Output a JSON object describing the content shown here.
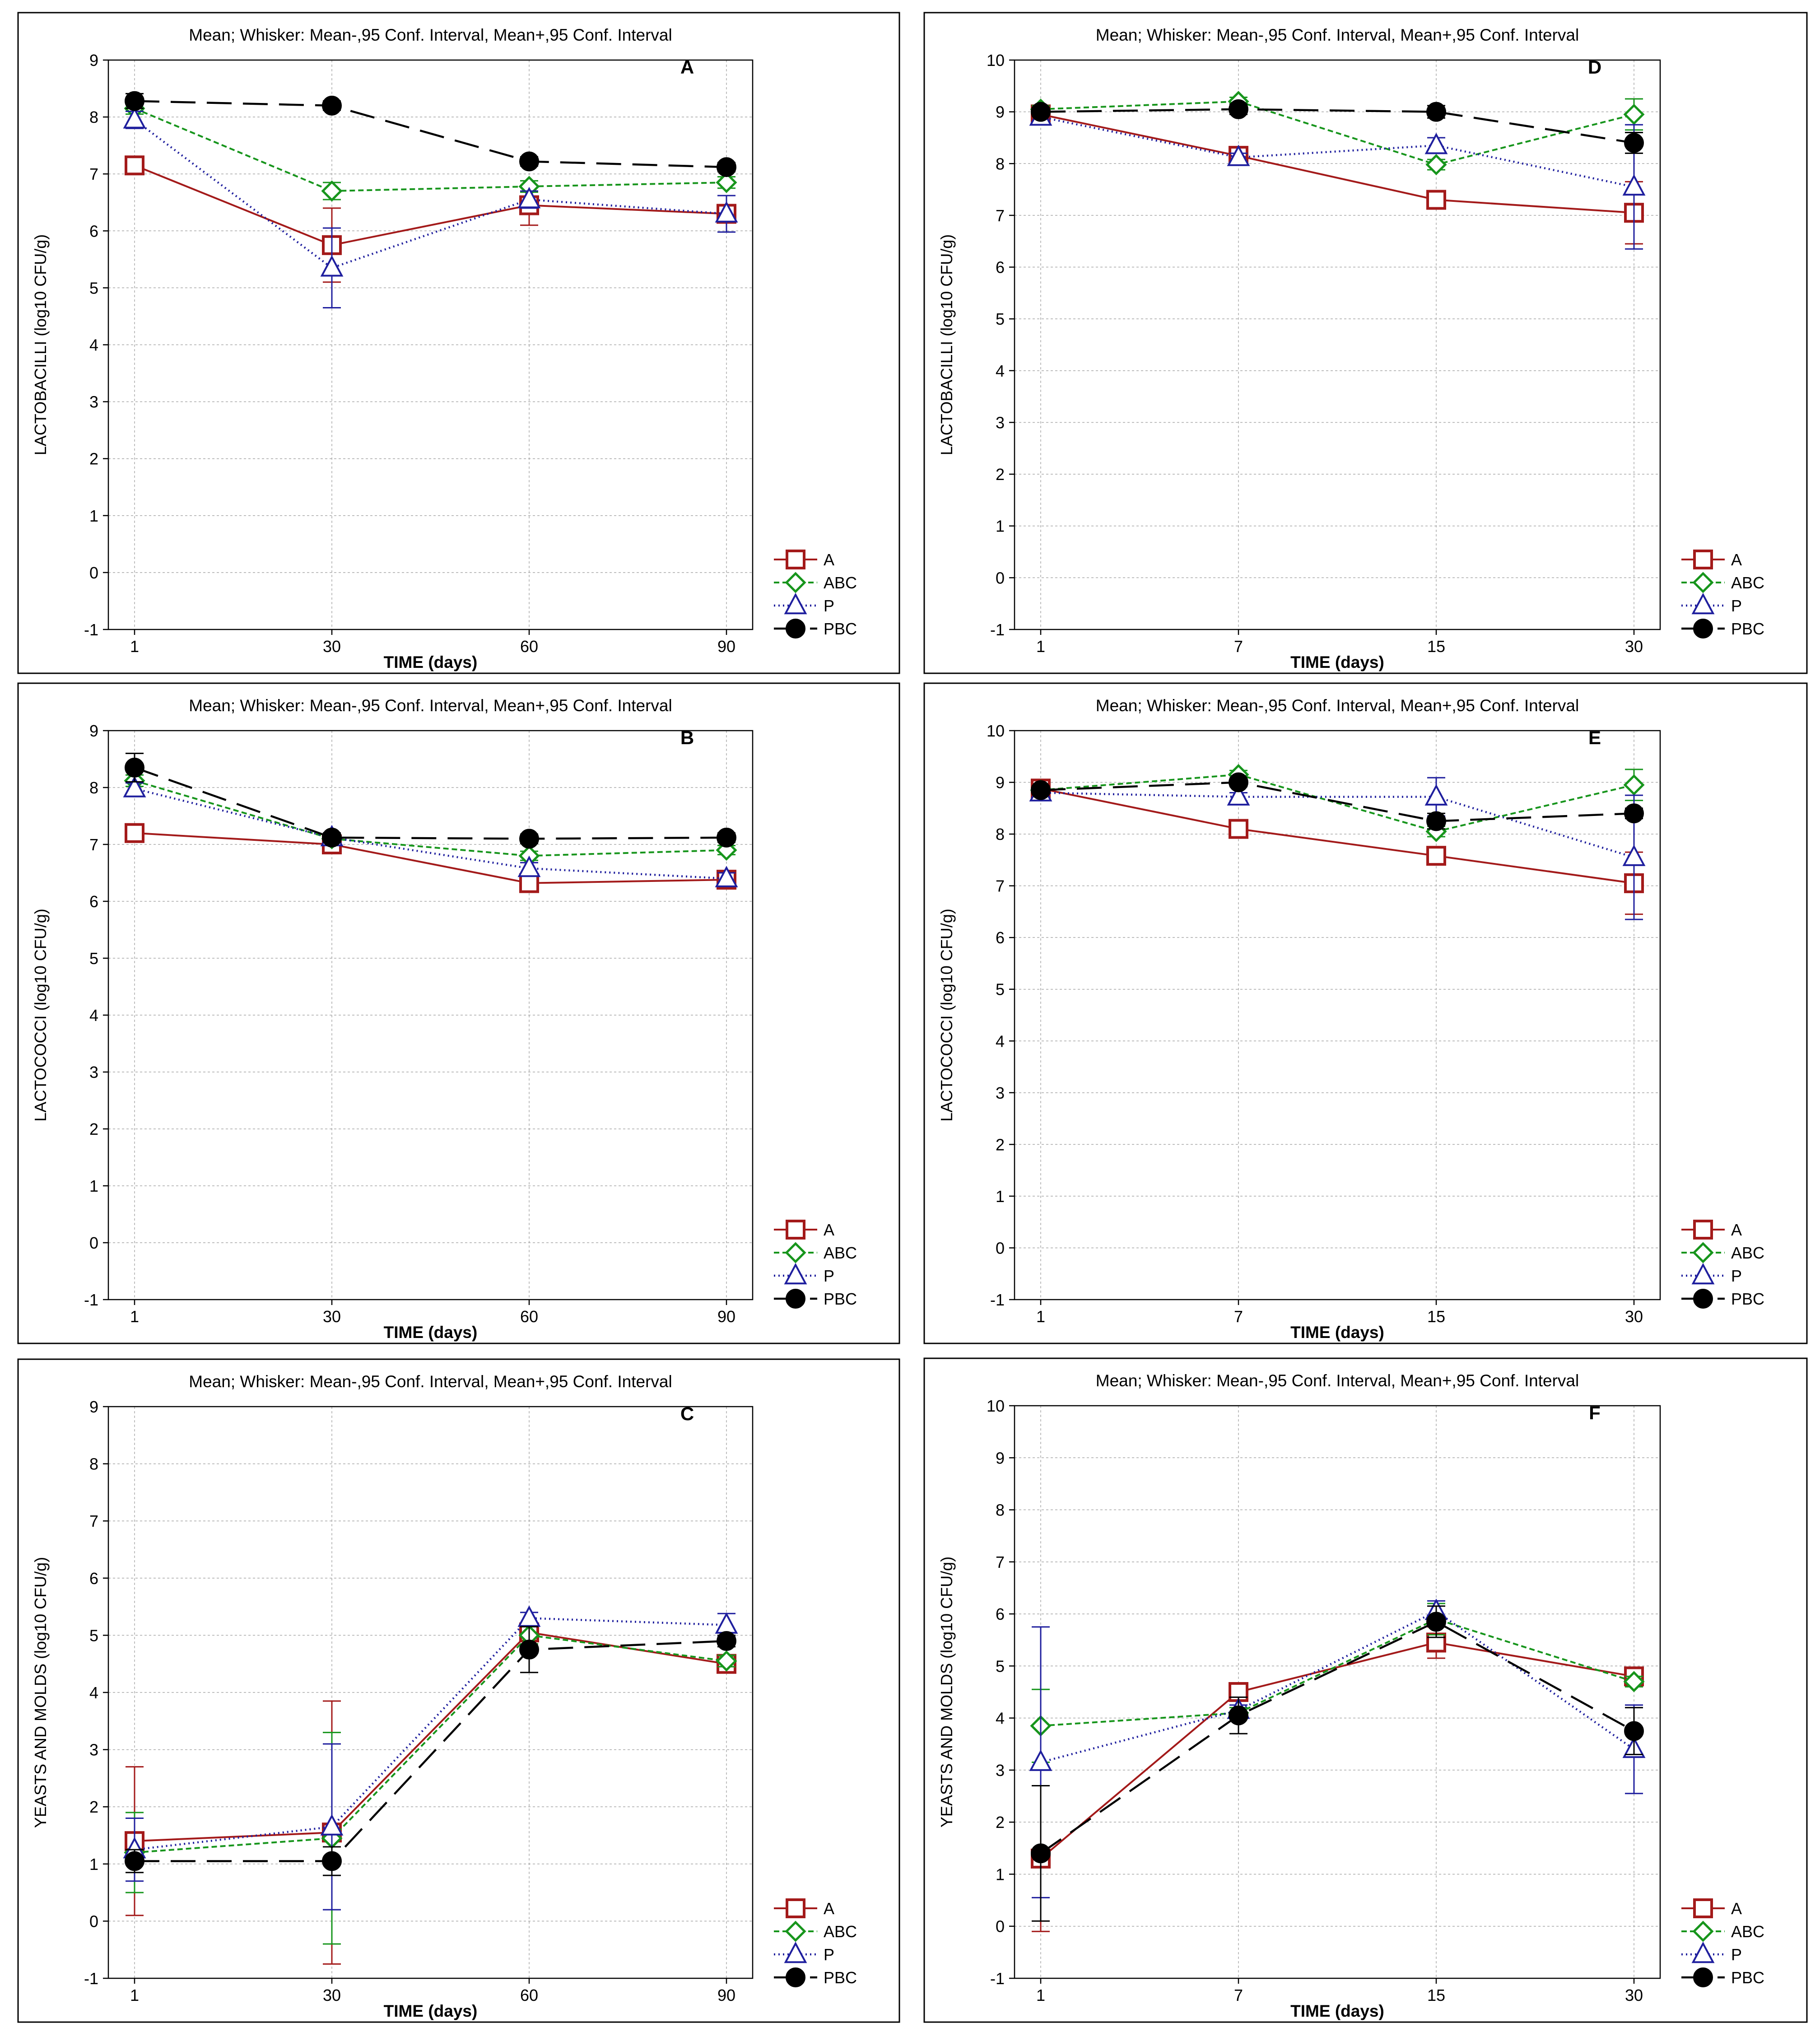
{
  "header_text": "Mean;  Whisker: Mean-,95 Conf. Interval, Mean+,95 Conf. Interval",
  "xlabel": "TIME (days)",
  "legend": [
    "A",
    "ABC",
    "P",
    "PBC"
  ],
  "series_colors": {
    "A": "#a31a1a",
    "ABC": "#17951c",
    "P": "#1f1f9e",
    "PBC": "#000000"
  },
  "chart_data": [
    {
      "type": "line",
      "panel": "A",
      "title": "Mean;  Whisker: Mean-,95 Conf. Interval, Mean+,95 Conf. Interval",
      "xlabel": "TIME (days)",
      "ylabel": "LACTOBACILLI  (log10 CFU/g)",
      "categories": [
        "1",
        "30",
        "60",
        "90"
      ],
      "ylim": [
        -1,
        9
      ],
      "yticks": [
        -1,
        0,
        1,
        2,
        3,
        4,
        5,
        6,
        7,
        8,
        9
      ],
      "series": [
        {
          "name": "A",
          "values": [
            7.15,
            5.75,
            6.45,
            6.3
          ],
          "ci_low": [
            7.0,
            5.1,
            6.1,
            6.15
          ],
          "ci_high": [
            7.3,
            6.4,
            6.8,
            6.45
          ]
        },
        {
          "name": "ABC",
          "values": [
            8.15,
            6.7,
            6.78,
            6.85
          ],
          "ci_low": [
            8.05,
            6.55,
            6.68,
            6.75
          ],
          "ci_high": [
            8.25,
            6.85,
            6.88,
            6.95
          ]
        },
        {
          "name": "P",
          "values": [
            7.95,
            5.35,
            6.55,
            6.3
          ],
          "ci_low": [
            7.8,
            4.65,
            6.4,
            5.98
          ],
          "ci_high": [
            8.1,
            6.05,
            6.7,
            6.62
          ]
        },
        {
          "name": "PBC",
          "values": [
            8.28,
            8.2,
            7.22,
            7.12
          ],
          "ci_low": [
            8.15,
            8.12,
            7.14,
            7.04
          ],
          "ci_high": [
            8.41,
            8.28,
            7.3,
            7.2
          ]
        }
      ]
    },
    {
      "type": "line",
      "panel": "B",
      "title": "Mean;  Whisker: Mean-,95 Conf. Interval, Mean+,95 Conf. Interval",
      "xlabel": "TIME (days)",
      "ylabel": "LACTOCOCCI  (log10 CFU/g)",
      "categories": [
        "1",
        "30",
        "60",
        "90"
      ],
      "ylim": [
        -1,
        9
      ],
      "yticks": [
        -1,
        0,
        1,
        2,
        3,
        4,
        5,
        6,
        7,
        8,
        9
      ],
      "series": [
        {
          "name": "A",
          "values": [
            7.2,
            7.0,
            6.32,
            6.38
          ],
          "ci_low": [
            7.12,
            6.92,
            6.22,
            6.28
          ],
          "ci_high": [
            7.28,
            7.08,
            6.42,
            6.48
          ]
        },
        {
          "name": "ABC",
          "values": [
            8.12,
            7.1,
            6.8,
            6.9
          ],
          "ci_low": [
            8.02,
            7.02,
            6.72,
            6.82
          ],
          "ci_high": [
            8.22,
            7.18,
            6.88,
            6.98
          ]
        },
        {
          "name": "P",
          "values": [
            7.98,
            7.12,
            6.58,
            6.4
          ],
          "ci_low": [
            7.88,
            7.04,
            6.48,
            6.3
          ],
          "ci_high": [
            8.08,
            7.2,
            6.68,
            6.5
          ]
        },
        {
          "name": "PBC",
          "values": [
            8.35,
            7.12,
            7.1,
            7.12
          ],
          "ci_low": [
            8.1,
            7.04,
            7.02,
            7.04
          ],
          "ci_high": [
            8.6,
            7.2,
            7.18,
            7.2
          ]
        }
      ]
    },
    {
      "type": "line",
      "panel": "C",
      "title": "Mean;  Whisker: Mean-,95 Conf. Interval, Mean+,95 Conf. Interval",
      "xlabel": "TIME (days)",
      "ylabel": "YEASTS AND MOLDS  (log10 CFU/g)",
      "categories": [
        "1",
        "30",
        "60",
        "90"
      ],
      "ylim": [
        -1,
        9
      ],
      "yticks": [
        -1,
        0,
        1,
        2,
        3,
        4,
        5,
        6,
        7,
        8,
        9
      ],
      "series": [
        {
          "name": "A",
          "values": [
            1.4,
            1.55,
            5.05,
            4.5
          ],
          "ci_low": [
            0.1,
            -0.75,
            4.9,
            4.4
          ],
          "ci_high": [
            2.7,
            3.85,
            5.2,
            4.6
          ]
        },
        {
          "name": "ABC",
          "values": [
            1.2,
            1.45,
            5.0,
            4.55
          ],
          "ci_low": [
            0.5,
            -0.4,
            4.85,
            4.45
          ],
          "ci_high": [
            1.9,
            3.3,
            5.15,
            4.65
          ]
        },
        {
          "name": "P",
          "values": [
            1.25,
            1.65,
            5.3,
            5.18
          ],
          "ci_low": [
            0.7,
            0.2,
            5.2,
            4.98
          ],
          "ci_high": [
            1.8,
            3.1,
            5.4,
            5.38
          ]
        },
        {
          "name": "PBC",
          "values": [
            1.05,
            1.05,
            4.75,
            4.9
          ],
          "ci_low": [
            0.85,
            0.8,
            4.35,
            4.8
          ],
          "ci_high": [
            1.25,
            1.3,
            5.15,
            5.0
          ]
        }
      ]
    },
    {
      "type": "line",
      "panel": "D",
      "title": "Mean;  Whisker: Mean-,95 Conf. Interval, Mean+,95 Conf. Interval",
      "xlabel": "TIME (days)",
      "ylabel": "LACTOBACILLI  (log10 CFU/g)",
      "categories": [
        "1",
        "7",
        "15",
        "30"
      ],
      "ylim": [
        -1,
        10
      ],
      "yticks": [
        -1,
        0,
        1,
        2,
        3,
        4,
        5,
        6,
        7,
        8,
        9,
        10
      ],
      "series": [
        {
          "name": "A",
          "values": [
            8.95,
            8.15,
            7.3,
            7.05
          ],
          "ci_low": [
            8.85,
            8.07,
            7.22,
            6.45
          ],
          "ci_high": [
            9.05,
            8.23,
            7.38,
            7.65
          ]
        },
        {
          "name": "ABC",
          "values": [
            9.05,
            9.2,
            7.98,
            8.95
          ],
          "ci_low": [
            8.98,
            9.12,
            7.88,
            8.65
          ],
          "ci_high": [
            9.12,
            9.28,
            8.08,
            9.25
          ]
        },
        {
          "name": "P",
          "values": [
            8.9,
            8.12,
            8.35,
            7.55
          ],
          "ci_low": [
            8.82,
            8.04,
            8.2,
            6.35
          ],
          "ci_high": [
            8.98,
            8.2,
            8.5,
            8.75
          ]
        },
        {
          "name": "PBC",
          "values": [
            9.0,
            9.05,
            9.0,
            8.4
          ],
          "ci_low": [
            8.92,
            8.95,
            8.88,
            8.2
          ],
          "ci_high": [
            9.08,
            9.15,
            9.12,
            8.6
          ]
        }
      ]
    },
    {
      "type": "line",
      "panel": "E",
      "title": "Mean;  Whisker: Mean-,95 Conf. Interval, Mean+,95 Conf. Interval",
      "xlabel": "TIME (days)",
      "ylabel": "LACTOCOCCI  (log10 CFU/g)",
      "categories": [
        "1",
        "7",
        "15",
        "30"
      ],
      "ylim": [
        -1,
        10
      ],
      "yticks": [
        -1,
        0,
        1,
        2,
        3,
        4,
        5,
        6,
        7,
        8,
        9,
        10
      ],
      "series": [
        {
          "name": "A",
          "values": [
            8.88,
            8.1,
            7.58,
            7.05
          ],
          "ci_low": [
            8.8,
            8.02,
            7.5,
            6.45
          ],
          "ci_high": [
            8.96,
            8.18,
            7.66,
            7.65
          ]
        },
        {
          "name": "ABC",
          "values": [
            8.85,
            9.15,
            8.05,
            8.95
          ],
          "ci_low": [
            8.77,
            9.07,
            7.95,
            8.65
          ],
          "ci_high": [
            8.93,
            9.23,
            8.15,
            9.25
          ]
        },
        {
          "name": "P",
          "values": [
            8.8,
            8.72,
            8.72,
            7.55
          ],
          "ci_low": [
            8.72,
            8.64,
            8.35,
            6.35
          ],
          "ci_high": [
            8.88,
            8.8,
            9.09,
            8.75
          ]
        },
        {
          "name": "PBC",
          "values": [
            8.85,
            9.0,
            8.25,
            8.4
          ],
          "ci_low": [
            8.77,
            8.92,
            8.1,
            8.3
          ],
          "ci_high": [
            8.93,
            9.08,
            8.4,
            8.5
          ]
        }
      ]
    },
    {
      "type": "line",
      "panel": "F",
      "title": "Mean;  Whisker: Mean-,95 Conf. Interval, Mean+,95 Conf. Interval",
      "xlabel": "TIME (days)",
      "ylabel": "YEASTS AND MOLDS  (log10 CFU/g)",
      "categories": [
        "1",
        "7",
        "15",
        "30"
      ],
      "ylim": [
        -1,
        10
      ],
      "yticks": [
        -1,
        0,
        1,
        2,
        3,
        4,
        5,
        6,
        7,
        8,
        9,
        10
      ],
      "series": [
        {
          "name": "A",
          "values": [
            1.3,
            4.5,
            5.45,
            4.8
          ],
          "ci_low": [
            -0.1,
            4.4,
            5.15,
            4.7
          ],
          "ci_high": [
            2.7,
            4.6,
            5.75,
            4.9
          ]
        },
        {
          "name": "ABC",
          "values": [
            3.85,
            4.1,
            5.9,
            4.7
          ],
          "ci_low": [
            3.15,
            4.0,
            5.6,
            4.6
          ],
          "ci_high": [
            4.55,
            4.2,
            6.2,
            4.8
          ]
        },
        {
          "name": "P",
          "values": [
            3.15,
            4.15,
            6.05,
            3.4
          ],
          "ci_low": [
            0.55,
            4.05,
            5.85,
            2.55
          ],
          "ci_high": [
            5.75,
            4.25,
            6.25,
            4.25
          ]
        },
        {
          "name": "PBC",
          "values": [
            1.4,
            4.05,
            5.85,
            3.75
          ],
          "ci_low": [
            0.1,
            3.7,
            5.55,
            3.3
          ],
          "ci_high": [
            2.7,
            4.4,
            6.15,
            4.2
          ]
        }
      ]
    }
  ]
}
